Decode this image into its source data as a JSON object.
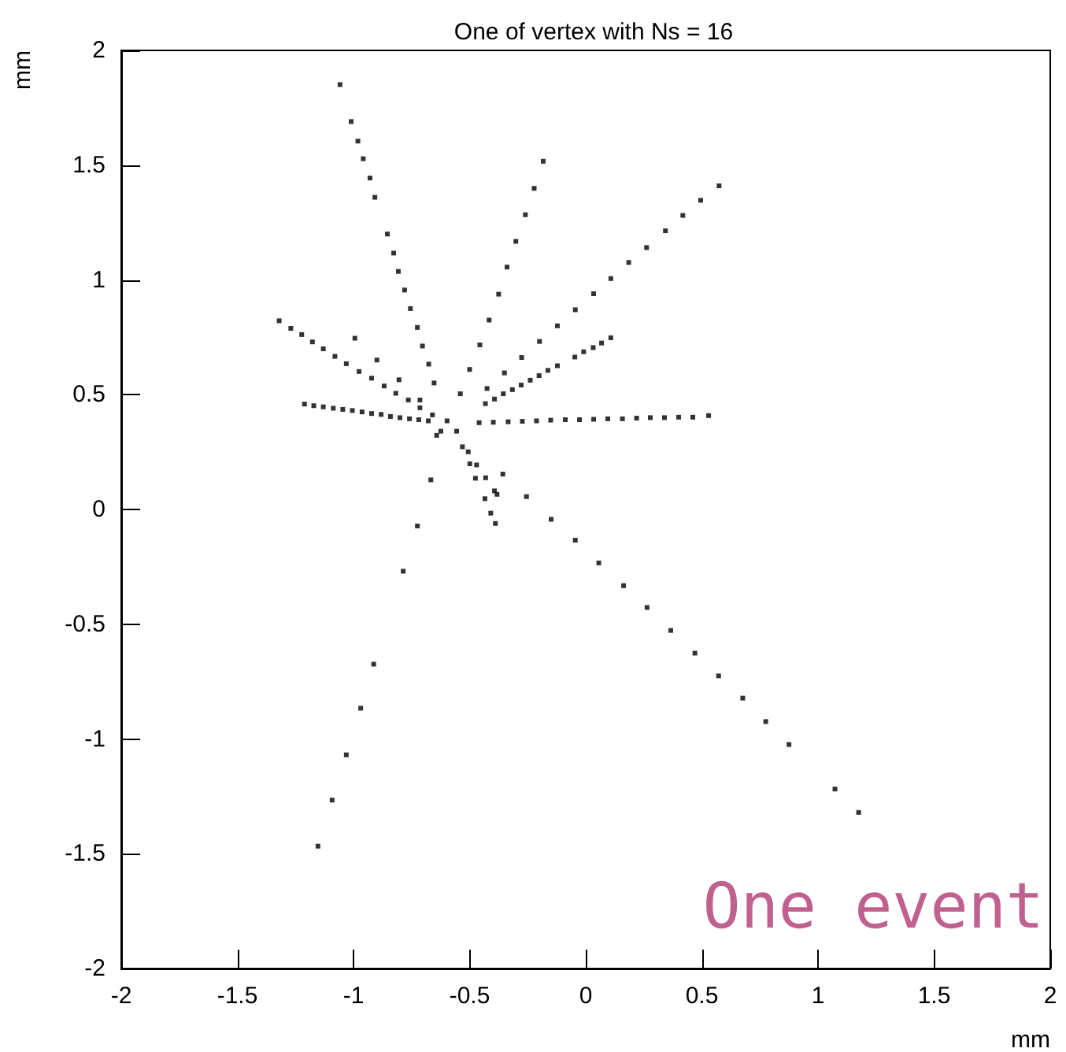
{
  "chart_data": {
    "type": "scatter",
    "title": "One of vertex with Ns = 16",
    "xlabel": "mm",
    "ylabel": "mm",
    "annotations": [
      "One event"
    ],
    "xlim": [
      -2,
      2
    ],
    "ylim": [
      -2,
      2
    ],
    "xticks": [
      -2,
      -1.5,
      -1,
      -0.5,
      0,
      0.5,
      1,
      1.5,
      2
    ],
    "yticks": [
      -2,
      -1.5,
      -1,
      -0.5,
      0,
      0.5,
      1,
      1.5,
      2
    ],
    "grid": false,
    "marker": "square",
    "series": [
      {
        "color": "#000000",
        "x": [
          -1.058,
          -1.01,
          -0.981,
          -0.958,
          -0.929,
          -0.908,
          -0.854,
          -0.827,
          -0.807,
          -0.78,
          -0.755,
          -0.725,
          -0.703,
          -0.676,
          -0.653,
          -0.597,
          -0.183,
          -0.222,
          -0.26,
          -0.301,
          -0.339,
          -0.375,
          -0.416,
          -0.456,
          -0.5,
          -0.54,
          0.574,
          0.495,
          0.418,
          0.343,
          0.262,
          0.185,
          0.108,
          0.034,
          -0.045,
          -0.122,
          -0.199,
          -0.276,
          -0.35,
          -0.425,
          0.108,
          0.068,
          0.032,
          -0.009,
          -0.047,
          -0.122,
          -0.163,
          -0.201,
          -0.239,
          -0.278,
          -0.316,
          -0.355,
          -0.393,
          -0.432,
          0.529,
          0.461,
          0.4,
          0.339,
          0.278,
          0.219,
          0.158,
          0.095,
          0.034,
          -0.027,
          -0.088,
          -0.151,
          -0.212,
          -0.273,
          -0.334,
          -0.398,
          -0.459,
          -1.211,
          -1.171,
          -1.13,
          -1.087,
          -1.046,
          -1.005,
          -0.963,
          -0.922,
          -0.881,
          -0.841,
          -0.8,
          -0.759,
          -0.719,
          -0.678,
          -1.32,
          -1.27,
          -1.223,
          -1.177,
          -1.13,
          -1.08,
          -1.031,
          -0.976,
          -0.922,
          -0.868,
          -0.818,
          -0.764,
          -0.714,
          -0.66,
          -0.994,
          -0.899,
          -0.804,
          -0.714,
          -0.357,
          -0.255,
          -0.149,
          -0.045,
          0.056,
          0.163,
          0.264,
          0.366,
          0.47,
          0.572,
          0.676,
          0.775,
          0.875,
          1.073,
          1.175,
          -0.667,
          -0.725,
          -0.786,
          -0.913,
          -0.969,
          -1.031,
          -1.092,
          -1.153,
          -0.556,
          -0.531,
          -0.499,
          -0.475,
          -0.434,
          -0.409,
          -0.389,
          -0.506,
          -0.47,
          -0.431,
          -0.393,
          -0.382,
          -0.642,
          -0.624
        ],
        "values": [
          1.851,
          1.69,
          1.605,
          1.528,
          1.444,
          1.36,
          1.2,
          1.117,
          1.037,
          0.956,
          0.875,
          0.793,
          0.712,
          0.633,
          0.551,
          0.386,
          1.517,
          1.399,
          1.284,
          1.168,
          1.056,
          0.938,
          0.825,
          0.717,
          0.61,
          0.504,
          1.41,
          1.347,
          1.281,
          1.214,
          1.141,
          1.076,
          1.006,
          0.94,
          0.87,
          0.8,
          0.732,
          0.662,
          0.595,
          0.527,
          0.748,
          0.725,
          0.705,
          0.687,
          0.664,
          0.626,
          0.606,
          0.583,
          0.563,
          0.542,
          0.522,
          0.504,
          0.481,
          0.461,
          0.409,
          0.402,
          0.402,
          0.4,
          0.4,
          0.398,
          0.395,
          0.395,
          0.393,
          0.391,
          0.391,
          0.389,
          0.386,
          0.384,
          0.382,
          0.38,
          0.378,
          0.459,
          0.452,
          0.447,
          0.441,
          0.436,
          0.431,
          0.425,
          0.418,
          0.414,
          0.405,
          0.4,
          0.395,
          0.391,
          0.386,
          0.822,
          0.789,
          0.762,
          0.73,
          0.7,
          0.667,
          0.635,
          0.601,
          0.572,
          0.538,
          0.506,
          0.477,
          0.443,
          0.412,
          0.746,
          0.651,
          0.565,
          0.477,
          0.154,
          0.056,
          -0.043,
          -0.134,
          -0.233,
          -0.332,
          -0.427,
          -0.527,
          -0.626,
          -0.725,
          -0.822,
          -0.924,
          -1.024,
          -1.218,
          -1.32,
          0.129,
          -0.072,
          -0.269,
          -0.674,
          -0.866,
          -1.069,
          -1.266,
          -1.467,
          0.341,
          0.273,
          0.199,
          0.136,
          0.047,
          -0.016,
          -0.061,
          0.251,
          0.194,
          0.138,
          0.081,
          0.066,
          0.323,
          0.341
        ]
      }
    ]
  }
}
